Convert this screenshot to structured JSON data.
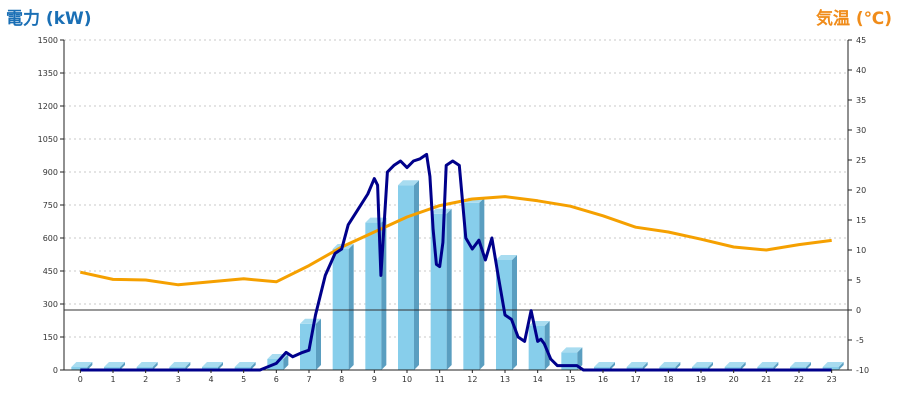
{
  "chart_data": {
    "type": "bar+line",
    "left_axis_label": "電力 (kW)",
    "right_axis_label": "気温 (℃)",
    "x_ticks": [
      "0",
      "1",
      "2",
      "3",
      "4",
      "5",
      "6",
      "7",
      "8",
      "9",
      "10",
      "11",
      "12",
      "13",
      "14",
      "15",
      "16",
      "17",
      "18",
      "19",
      "20",
      "21",
      "22",
      "23"
    ],
    "y_left_ticks": [
      "0",
      "150",
      "300",
      "450",
      "600",
      "750",
      "900",
      "1050",
      "1200",
      "1350",
      "1500"
    ],
    "y_left_lim": [
      0,
      1500
    ],
    "y_right_ticks": [
      "-10",
      "-5",
      "0",
      "5",
      "10",
      "15",
      "20",
      "25",
      "30",
      "35",
      "40",
      "45"
    ],
    "y_right_lim": [
      -10,
      45
    ],
    "reference_line_right": 0,
    "grid": "horizontal dotted",
    "bars": {
      "name": "",
      "unit": "kW",
      "categories": [
        "0",
        "1",
        "2",
        "3",
        "4",
        "5",
        "6",
        "7",
        "8",
        "9",
        "10",
        "11",
        "12",
        "13",
        "14",
        "15",
        "16",
        "17",
        "18",
        "19",
        "20",
        "21",
        "22",
        "23"
      ],
      "values": [
        0,
        0,
        0,
        0,
        0,
        0,
        50,
        210,
        550,
        670,
        840,
        710,
        760,
        500,
        200,
        80,
        10,
        0,
        0,
        0,
        0,
        0,
        0,
        0
      ]
    },
    "power_line": {
      "name": "",
      "unit": "kW",
      "x": [
        0,
        1,
        2,
        3,
        4,
        5,
        5.5,
        6,
        6.3,
        6.5,
        6.8,
        7,
        7.2,
        7.5,
        7.8,
        8,
        8.2,
        8.5,
        8.8,
        9,
        9.1,
        9.2,
        9.4,
        9.6,
        9.8,
        10,
        10.2,
        10.4,
        10.6,
        10.7,
        10.8,
        10.9,
        11,
        11.1,
        11.2,
        11.4,
        11.6,
        11.8,
        12,
        12.2,
        12.4,
        12.6,
        12.8,
        13,
        13.2,
        13.4,
        13.6,
        13.8,
        14,
        14.1,
        14.2,
        14.4,
        14.6,
        14.8,
        15,
        15.2,
        15.4,
        15.6,
        16,
        17,
        18,
        19,
        20,
        21,
        22,
        23
      ],
      "values": [
        0,
        0,
        0,
        0,
        0,
        0,
        0,
        30,
        80,
        60,
        80,
        90,
        250,
        430,
        530,
        550,
        660,
        730,
        800,
        870,
        840,
        430,
        900,
        930,
        950,
        920,
        950,
        960,
        980,
        880,
        640,
        480,
        470,
        580,
        930,
        950,
        930,
        600,
        550,
        590,
        500,
        600,
        420,
        250,
        230,
        150,
        130,
        270,
        130,
        140,
        120,
        50,
        20,
        20,
        20,
        20,
        0,
        0,
        0,
        0,
        0,
        0,
        0,
        0,
        0,
        0
      ]
    },
    "temperature_line": {
      "name": "",
      "unit": "℃",
      "x": [
        0,
        1,
        2,
        3,
        4,
        5,
        6,
        7,
        8,
        9,
        10,
        11,
        12,
        13,
        14,
        15,
        16,
        17,
        18,
        19,
        20,
        21,
        22,
        23
      ],
      "values": [
        6.3,
        5.1,
        5.0,
        4.2,
        4.7,
        5.2,
        4.7,
        7.4,
        10.5,
        13.0,
        15.5,
        17.4,
        18.5,
        18.9,
        18.2,
        17.3,
        15.7,
        13.8,
        13.0,
        11.8,
        10.5,
        10.0,
        10.9,
        11.6
      ]
    },
    "colors": {
      "bar_face": "#87ceeb",
      "bar_side": "#5a9ec0",
      "bar_top": "#a8dcf0",
      "power_line": "#00008b",
      "temperature_line": "#f5a000",
      "left_title": "#1a6fb5",
      "right_title": "#f08c1a"
    }
  }
}
